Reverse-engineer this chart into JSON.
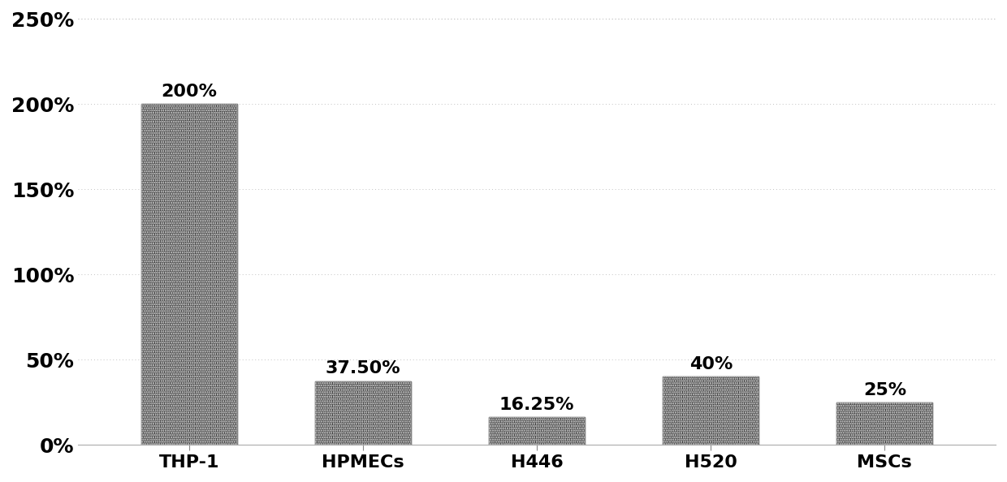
{
  "categories": [
    "THP-1",
    "HPMECs",
    "H446",
    "H520",
    "MSCs"
  ],
  "values": [
    200,
    37.5,
    16.25,
    40,
    25
  ],
  "labels": [
    "200%",
    "37.50%",
    "16.25%",
    "40%",
    "25%"
  ],
  "ylim": [
    0,
    250
  ],
  "yticks": [
    0,
    50,
    100,
    150,
    200,
    250
  ],
  "ytick_labels": [
    "0%",
    "50%",
    "100%",
    "150%",
    "200%",
    "250%"
  ],
  "background_color": "#ffffff",
  "grid_color": "#bbbbbb",
  "label_fontsize": 16,
  "tick_fontsize": 18,
  "xtick_fontsize": 16,
  "bar_width": 0.55,
  "bar_edge_color": "#111111",
  "title": ""
}
